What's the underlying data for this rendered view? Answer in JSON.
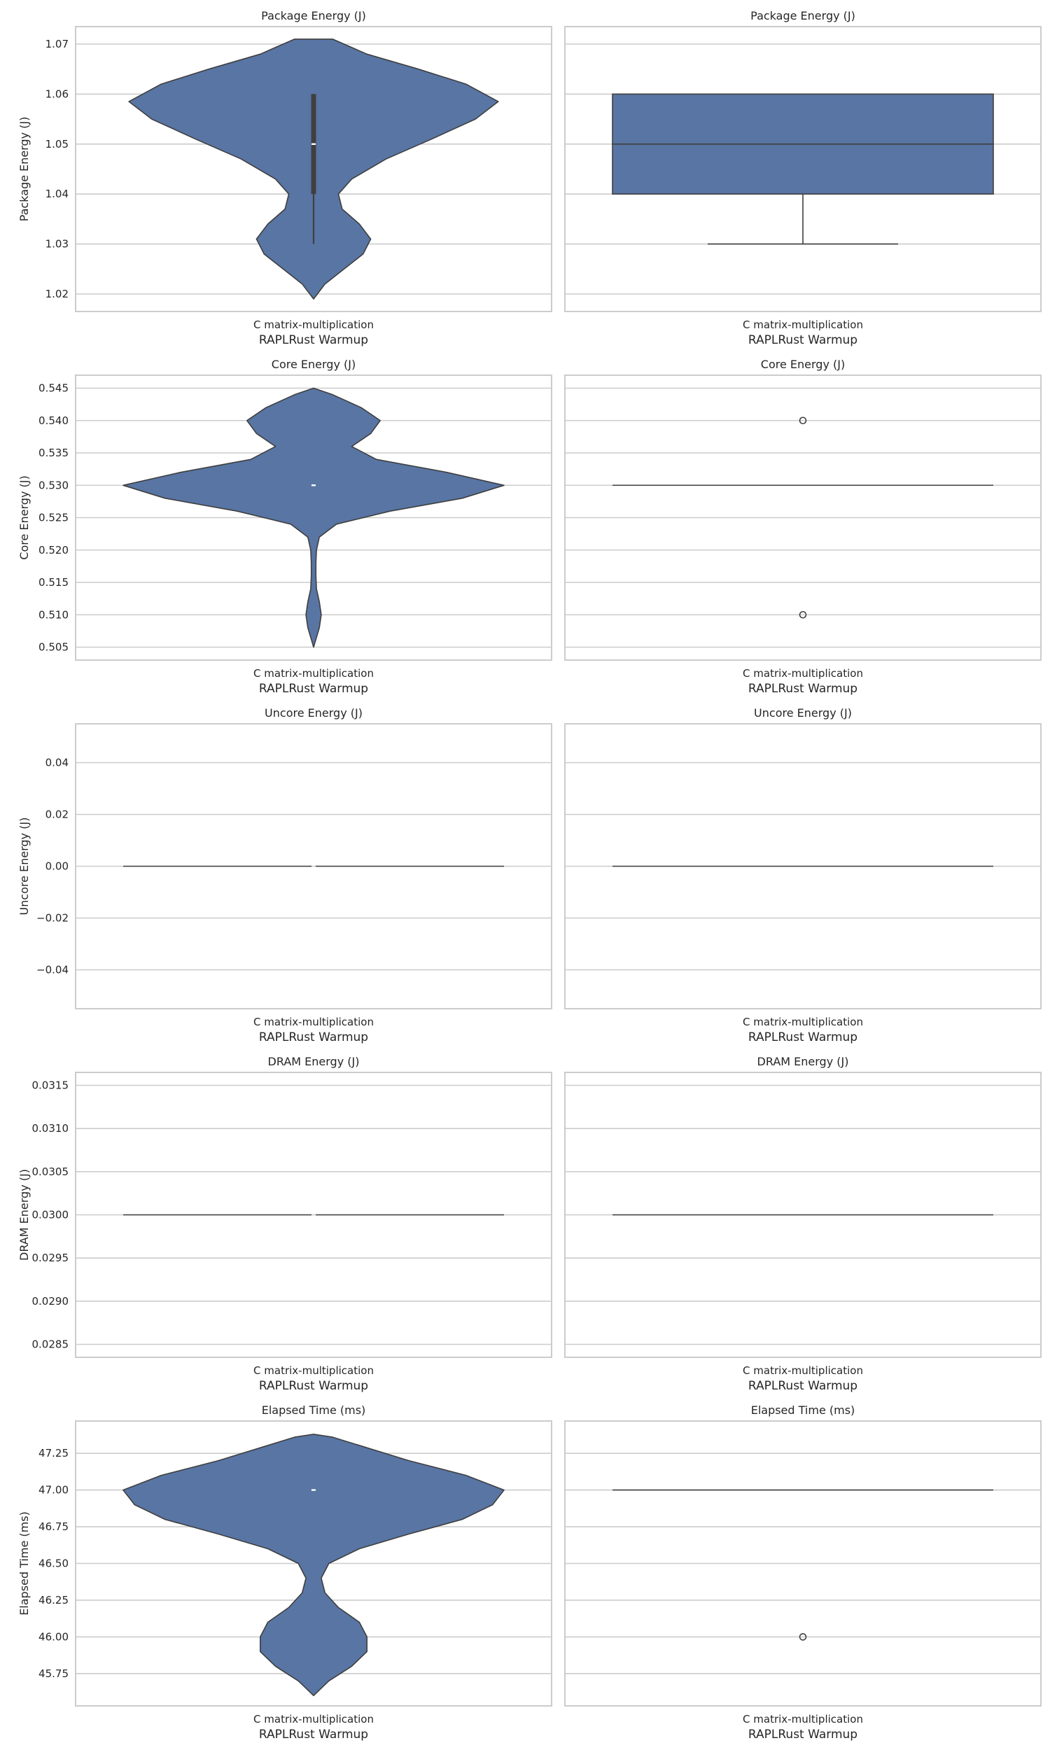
{
  "chart_data": [
    {
      "type": "violin",
      "title": "Package Energy (J)",
      "ylabel": "Package Energy (J)",
      "xlabel": "RAPLRust Warmup",
      "categories": [
        "C matrix-multiplication"
      ],
      "ylim": [
        1.0165,
        1.0735
      ],
      "yticks": [
        "1.02",
        "1.03",
        "1.04",
        "1.05",
        "1.06",
        "1.07"
      ],
      "ytick_values": [
        1.02,
        1.03,
        1.04,
        1.05,
        1.06,
        1.07
      ],
      "density": [
        [
          1.019,
          0
        ],
        [
          1.022,
          0.06
        ],
        [
          1.025,
          0.16
        ],
        [
          1.028,
          0.26
        ],
        [
          1.031,
          0.3
        ],
        [
          1.034,
          0.24
        ],
        [
          1.037,
          0.15
        ],
        [
          1.04,
          0.13
        ],
        [
          1.043,
          0.2
        ],
        [
          1.047,
          0.38
        ],
        [
          1.051,
          0.62
        ],
        [
          1.055,
          0.85
        ],
        [
          1.0585,
          0.97
        ],
        [
          1.062,
          0.8
        ],
        [
          1.065,
          0.55
        ],
        [
          1.068,
          0.28
        ],
        [
          1.071,
          0.1
        ],
        [
          1.071,
          0
        ]
      ],
      "quartiles": [
        1.04,
        1.05,
        1.06
      ],
      "whiskers": [
        1.03,
        1.06
      ],
      "grid": true,
      "color": "#5875a4"
    },
    {
      "type": "box",
      "title": "Package Energy (J)",
      "xlabel": "RAPLRust Warmup",
      "categories": [
        "C matrix-multiplication"
      ],
      "ylim": [
        1.0165,
        1.0735
      ],
      "ytick_values": [
        1.02,
        1.03,
        1.04,
        1.05,
        1.06,
        1.07
      ],
      "q1": 1.04,
      "median": 1.05,
      "q3": 1.06,
      "whisker_low": 1.03,
      "whisker_high": 1.06,
      "outliers": [],
      "grid": true,
      "color": "#5875a4"
    },
    {
      "type": "violin",
      "title": "Core Energy (J)",
      "ylabel": "Core Energy (J)",
      "xlabel": "RAPLRust Warmup",
      "categories": [
        "C matrix-multiplication"
      ],
      "ylim": [
        0.503,
        0.547
      ],
      "yticks": [
        "0.505",
        "0.510",
        "0.515",
        "0.520",
        "0.525",
        "0.530",
        "0.535",
        "0.540",
        "0.545"
      ],
      "ytick_values": [
        0.505,
        0.51,
        0.515,
        0.52,
        0.525,
        0.53,
        0.535,
        0.54,
        0.545
      ],
      "density": [
        [
          0.505,
          0
        ],
        [
          0.506,
          0.01
        ],
        [
          0.508,
          0.03
        ],
        [
          0.51,
          0.04
        ],
        [
          0.512,
          0.03
        ],
        [
          0.514,
          0.015
        ],
        [
          0.516,
          0.012
        ],
        [
          0.518,
          0.012
        ],
        [
          0.52,
          0.015
        ],
        [
          0.522,
          0.03
        ],
        [
          0.524,
          0.12
        ],
        [
          0.526,
          0.4
        ],
        [
          0.528,
          0.78
        ],
        [
          0.53,
          1.0
        ],
        [
          0.532,
          0.7
        ],
        [
          0.534,
          0.33
        ],
        [
          0.536,
          0.2
        ],
        [
          0.538,
          0.3
        ],
        [
          0.54,
          0.35
        ],
        [
          0.542,
          0.25
        ],
        [
          0.544,
          0.1
        ],
        [
          0.545,
          0
        ]
      ],
      "quartiles": [
        0.53,
        0.53,
        0.53
      ],
      "whiskers": [
        0.53,
        0.53
      ],
      "grid": true,
      "color": "#5875a4"
    },
    {
      "type": "box",
      "title": "Core Energy (J)",
      "xlabel": "RAPLRust Warmup",
      "categories": [
        "C matrix-multiplication"
      ],
      "ylim": [
        0.503,
        0.547
      ],
      "ytick_values": [
        0.505,
        0.51,
        0.515,
        0.52,
        0.525,
        0.53,
        0.535,
        0.54,
        0.545
      ],
      "q1": 0.53,
      "median": 0.53,
      "q3": 0.53,
      "whisker_low": 0.53,
      "whisker_high": 0.53,
      "outliers": [
        0.54,
        0.51
      ],
      "grid": true,
      "color": "#5875a4"
    },
    {
      "type": "violin",
      "title": "Uncore Energy (J)",
      "ylabel": "Uncore Energy (J)",
      "xlabel": "RAPLRust Warmup",
      "categories": [
        "C matrix-multiplication"
      ],
      "ylim": [
        -0.055,
        0.055
      ],
      "yticks": [
        "−0.04",
        "−0.02",
        "0.00",
        "0.02",
        "0.04"
      ],
      "ytick_values": [
        -0.04,
        -0.02,
        0,
        0.02,
        0.04
      ],
      "flat_value": 0.0,
      "grid": true,
      "color": "#5875a4"
    },
    {
      "type": "box",
      "title": "Uncore Energy (J)",
      "xlabel": "RAPLRust Warmup",
      "categories": [
        "C matrix-multiplication"
      ],
      "ylim": [
        -0.055,
        0.055
      ],
      "ytick_values": [
        -0.04,
        -0.02,
        0,
        0.02,
        0.04
      ],
      "q1": 0.0,
      "median": 0.0,
      "q3": 0.0,
      "whisker_low": 0.0,
      "whisker_high": 0.0,
      "outliers": [],
      "grid": true,
      "color": "#5875a4"
    },
    {
      "type": "violin",
      "title": "DRAM Energy (J)",
      "ylabel": "DRAM Energy (J)",
      "xlabel": "RAPLRust Warmup",
      "categories": [
        "C matrix-multiplication"
      ],
      "ylim": [
        0.02835,
        0.03165
      ],
      "yticks": [
        "0.0285",
        "0.0290",
        "0.0295",
        "0.0300",
        "0.0305",
        "0.0310",
        "0.0315"
      ],
      "ytick_values": [
        0.0285,
        0.029,
        0.0295,
        0.03,
        0.0305,
        0.031,
        0.0315
      ],
      "flat_value": 0.03,
      "grid": true,
      "color": "#5875a4"
    },
    {
      "type": "box",
      "title": "DRAM Energy (J)",
      "xlabel": "RAPLRust Warmup",
      "categories": [
        "C matrix-multiplication"
      ],
      "ylim": [
        0.02835,
        0.03165
      ],
      "ytick_values": [
        0.0285,
        0.029,
        0.0295,
        0.03,
        0.0305,
        0.031,
        0.0315
      ],
      "q1": 0.03,
      "median": 0.03,
      "q3": 0.03,
      "whisker_low": 0.03,
      "whisker_high": 0.03,
      "outliers": [],
      "grid": true,
      "color": "#5875a4"
    },
    {
      "type": "violin",
      "title": "Elapsed Time (ms)",
      "ylabel": "Elapsed Time (ms)",
      "xlabel": "RAPLRust Warmup",
      "categories": [
        "C matrix-multiplication"
      ],
      "ylim": [
        45.53,
        47.47
      ],
      "yticks": [
        "45.75",
        "46.00",
        "46.25",
        "46.50",
        "46.75",
        "47.00",
        "47.25"
      ],
      "ytick_values": [
        45.75,
        46.0,
        46.25,
        46.5,
        46.75,
        47.0,
        47.25
      ],
      "density": [
        [
          45.6,
          0
        ],
        [
          45.7,
          0.08
        ],
        [
          45.8,
          0.2
        ],
        [
          45.9,
          0.28
        ],
        [
          46.0,
          0.28
        ],
        [
          46.1,
          0.24
        ],
        [
          46.2,
          0.13
        ],
        [
          46.3,
          0.06
        ],
        [
          46.4,
          0.04
        ],
        [
          46.5,
          0.08
        ],
        [
          46.6,
          0.24
        ],
        [
          46.7,
          0.5
        ],
        [
          46.8,
          0.78
        ],
        [
          46.9,
          0.94
        ],
        [
          47.0,
          1.0
        ],
        [
          47.1,
          0.8
        ],
        [
          47.2,
          0.5
        ],
        [
          47.3,
          0.25
        ],
        [
          47.36,
          0.1
        ],
        [
          47.38,
          0
        ]
      ],
      "quartiles": [
        47.0,
        47.0,
        47.0
      ],
      "whiskers": [
        47.0,
        47.0
      ],
      "grid": true,
      "color": "#5875a4"
    },
    {
      "type": "box",
      "title": "Elapsed Time (ms)",
      "xlabel": "RAPLRust Warmup",
      "categories": [
        "C matrix-multiplication"
      ],
      "ylim": [
        45.53,
        47.47
      ],
      "ytick_values": [
        45.75,
        46.0,
        46.25,
        46.5,
        46.75,
        47.0,
        47.25
      ],
      "q1": 47.0,
      "median": 47.0,
      "q3": 47.0,
      "whisker_low": 47.0,
      "whisker_high": 47.0,
      "outliers": [
        46.0
      ],
      "grid": true,
      "color": "#5875a4"
    }
  ]
}
